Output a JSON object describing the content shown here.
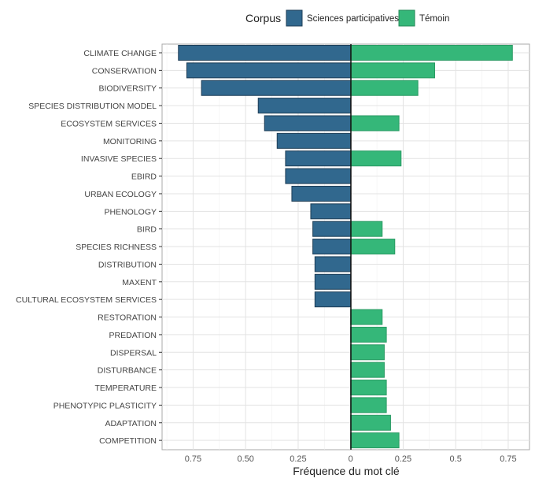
{
  "chart_data": {
    "type": "bar",
    "orientation": "horizontal-diverging",
    "xlabel": "Fréquence du mot clé",
    "ylabel": "",
    "xlim": [
      -0.89,
      0.86
    ],
    "x_ticks": [
      {
        "value": -0.75,
        "label": "0.75"
      },
      {
        "value": -0.5,
        "label": "0.50"
      },
      {
        "value": -0.25,
        "label": "0.25"
      },
      {
        "value": 0,
        "label": "0"
      },
      {
        "value": 0.25,
        "label": "0.25"
      },
      {
        "value": 0.5,
        "label": "0.5"
      },
      {
        "value": 0.75,
        "label": "0.75"
      }
    ],
    "grid": true,
    "legend": {
      "title": "Corpus",
      "placement": "top"
    },
    "categories": [
      "CLIMATE CHANGE",
      "CONSERVATION",
      "BIODIVERSITY",
      "SPECIES DISTRIBUTION MODEL",
      "ECOSYSTEM SERVICES",
      "MONITORING",
      "INVASIVE SPECIES",
      "EBIRD",
      "URBAN ECOLOGY",
      "PHENOLOGY",
      "BIRD",
      "SPECIES RICHNESS",
      "DISTRIBUTION",
      "MAXENT",
      "CULTURAL ECOSYSTEM SERVICES",
      "RESTORATION",
      "PREDATION",
      "DISPERSAL",
      "DISTURBANCE",
      "TEMPERATURE",
      "PHENOTYPIC PLASTICITY",
      "ADAPTATION",
      "COMPETITION"
    ],
    "series": [
      {
        "name": "Sciences participatives",
        "side": "left",
        "color": "#31688e",
        "values": [
          0.82,
          0.78,
          0.71,
          0.44,
          0.41,
          0.35,
          0.31,
          0.31,
          0.28,
          0.19,
          0.18,
          0.18,
          0.17,
          0.17,
          0.17,
          null,
          null,
          null,
          null,
          null,
          null,
          null,
          null
        ]
      },
      {
        "name": "Témoin",
        "side": "right",
        "color": "#35b779",
        "values": [
          0.77,
          0.4,
          0.32,
          null,
          0.23,
          null,
          0.24,
          null,
          null,
          null,
          0.15,
          0.21,
          null,
          null,
          null,
          0.15,
          0.17,
          0.16,
          0.16,
          0.17,
          0.17,
          0.19,
          0.23
        ]
      }
    ]
  }
}
